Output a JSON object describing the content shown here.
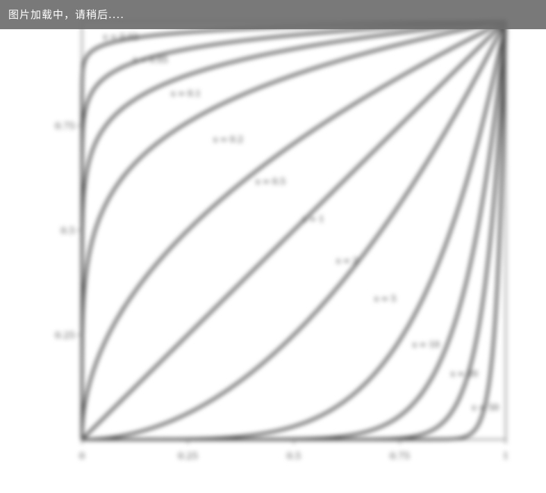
{
  "loading_text": "图片加载中，请稍后....",
  "chart_data": {
    "type": "line",
    "title": "",
    "x_ticks": [
      "0",
      "0.25",
      "0.5",
      "0.75",
      "1"
    ],
    "y_ticks": [
      "0.25",
      "0.5",
      "0.75"
    ],
    "x_range": [
      0,
      1
    ],
    "y_range": [
      0,
      1
    ],
    "grid": false,
    "curve_labels": [
      "s = 0.02",
      "s = 0.05",
      "s = 0.1",
      "s = 0.2",
      "s = 0.5",
      "s = 1",
      "s = 2",
      "s = 5",
      "s = 10",
      "s = 20",
      "s = 50"
    ],
    "series": [
      {
        "exponent": 0.02
      },
      {
        "exponent": 0.05
      },
      {
        "exponent": 0.1
      },
      {
        "exponent": 0.2
      },
      {
        "exponent": 0.5
      },
      {
        "exponent": 1
      },
      {
        "exponent": 2
      },
      {
        "exponent": 5
      },
      {
        "exponent": 10
      },
      {
        "exponent": 20
      },
      {
        "exponent": 50
      }
    ]
  }
}
